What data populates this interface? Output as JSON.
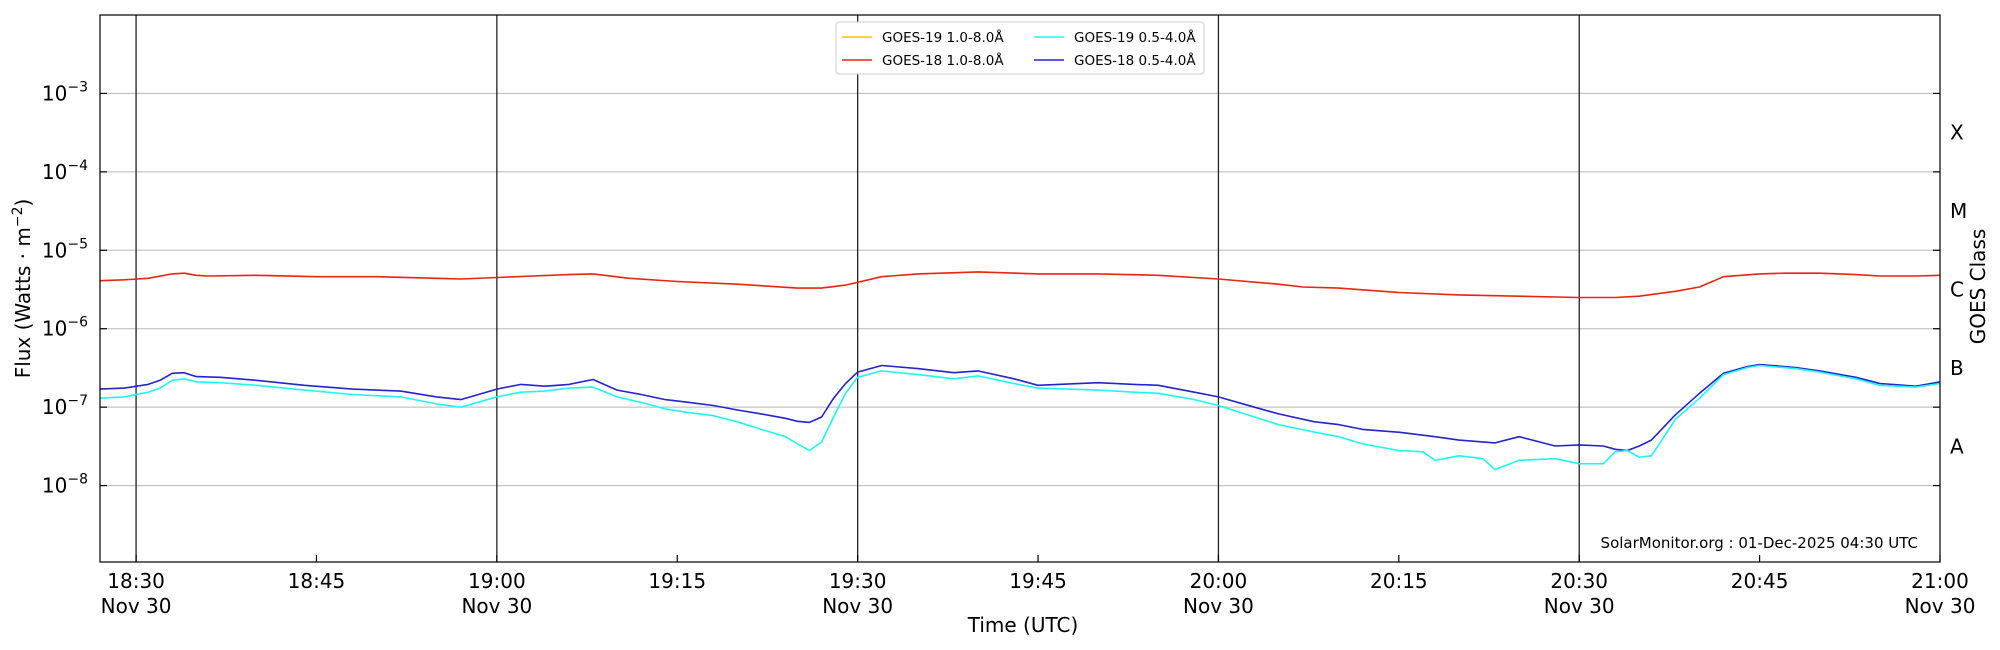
{
  "chart_data": {
    "type": "line",
    "xlabel": "Time (UTC)",
    "ylabel": "Flux (Watts · m",
    "ylabel_sup": "−2",
    "ylabel_suffix": ")",
    "right_label": "GOES Class",
    "x_range": [
      "18:27",
      "21:00"
    ],
    "y_log_range": [
      -8.9743,
      -2.0
    ],
    "y_scale": "log",
    "grid": "horizontal at decades",
    "legend_position": "top-center",
    "vertical_markers": [
      "18:30",
      "19:00",
      "19:30",
      "20:00",
      "20:30"
    ],
    "x_ticks": [
      {
        "t": "18:30",
        "label": "18:30",
        "date": "Nov 30"
      },
      {
        "t": "18:45",
        "label": "18:45",
        "date": ""
      },
      {
        "t": "19:00",
        "label": "19:00",
        "date": "Nov 30"
      },
      {
        "t": "19:15",
        "label": "19:15",
        "date": ""
      },
      {
        "t": "19:30",
        "label": "19:30",
        "date": "Nov 30"
      },
      {
        "t": "19:45",
        "label": "19:45",
        "date": ""
      },
      {
        "t": "20:00",
        "label": "20:00",
        "date": "Nov 30"
      },
      {
        "t": "20:15",
        "label": "20:15",
        "date": ""
      },
      {
        "t": "20:30",
        "label": "20:30",
        "date": "Nov 30"
      },
      {
        "t": "20:45",
        "label": "20:45",
        "date": ""
      },
      {
        "t": "21:00",
        "label": "21:00",
        "date": "Nov 30"
      }
    ],
    "y_ticks": [
      {
        "exp": -8,
        "base": "10",
        "sup": "−8"
      },
      {
        "exp": -7,
        "base": "10",
        "sup": "−7"
      },
      {
        "exp": -6,
        "base": "10",
        "sup": "−6"
      },
      {
        "exp": -5,
        "base": "10",
        "sup": "−5"
      },
      {
        "exp": -4,
        "base": "10",
        "sup": "−4"
      },
      {
        "exp": -3,
        "base": "10",
        "sup": "−3"
      }
    ],
    "goes_classes": [
      {
        "label": "A",
        "exp": -7.5
      },
      {
        "label": "B",
        "exp": -6.5
      },
      {
        "label": "C",
        "exp": -5.5
      },
      {
        "label": "M",
        "exp": -4.5
      },
      {
        "label": "X",
        "exp": -3.5
      }
    ],
    "watermark": "SolarMonitor.org : 01-Dec-2025 04:30 UTC",
    "series": [
      {
        "name": "GOES-19 1.0-8.0Å",
        "color": "#ffc000",
        "x": [],
        "y": []
      },
      {
        "name": "GOES-18 1.0-8.0Å",
        "color": "#e8250e",
        "x": [
          "18:27",
          "18:29",
          "18:31",
          "18:33",
          "18:34",
          "18:35",
          "18:36",
          "18:40",
          "18:45",
          "18:50",
          "18:55",
          "18:57",
          "19:00",
          "19:03",
          "19:06",
          "19:08",
          "19:11",
          "19:15",
          "19:20",
          "19:25",
          "19:27",
          "19:29",
          "19:32",
          "19:35",
          "19:40",
          "19:45",
          "19:50",
          "19:55",
          "20:00",
          "20:05",
          "20:07",
          "20:10",
          "20:15",
          "20:20",
          "20:25",
          "20:30",
          "20:33",
          "20:35",
          "20:38",
          "20:40",
          "20:42",
          "20:45",
          "20:47",
          "20:50",
          "20:53",
          "20:55",
          "20:58",
          "21:00"
        ],
        "y": [
          4.1e-06,
          4.2e-06,
          4.4e-06,
          5e-06,
          5.1e-06,
          4.8e-06,
          4.7e-06,
          4.8e-06,
          4.6e-06,
          4.6e-06,
          4.4e-06,
          4.3e-06,
          4.5e-06,
          4.7e-06,
          4.9e-06,
          5e-06,
          4.4e-06,
          4e-06,
          3.7e-06,
          3.3e-06,
          3.3e-06,
          3.6e-06,
          4.6e-06,
          5e-06,
          5.3e-06,
          5e-06,
          5e-06,
          4.8e-06,
          4.3e-06,
          3.7e-06,
          3.4e-06,
          3.3e-06,
          2.9e-06,
          2.7e-06,
          2.6e-06,
          2.5e-06,
          2.5e-06,
          2.6e-06,
          3e-06,
          3.4e-06,
          4.6e-06,
          5e-06,
          5.1e-06,
          5.1e-06,
          4.9e-06,
          4.7e-06,
          4.7e-06,
          4.8e-06
        ]
      },
      {
        "name": "GOES-19 0.5-4.0Å",
        "color": "#1ef5f5",
        "x": [
          "18:27",
          "18:29",
          "18:31",
          "18:32",
          "18:33",
          "18:34",
          "18:35",
          "18:37",
          "18:40",
          "18:44",
          "18:48",
          "18:52",
          "18:55",
          "18:57",
          "19:00",
          "19:02",
          "19:04",
          "19:06",
          "19:08",
          "19:10",
          "19:12",
          "19:14",
          "19:16",
          "19:18",
          "19:20",
          "19:22",
          "19:24",
          "19:25",
          "19:26",
          "19:27",
          "19:28",
          "19:29",
          "19:30",
          "19:32",
          "19:35",
          "19:38",
          "19:40",
          "19:43",
          "19:45",
          "19:50",
          "19:53",
          "19:55",
          "19:58",
          "20:00",
          "20:03",
          "20:05",
          "20:08",
          "20:10",
          "20:12",
          "20:15",
          "20:17",
          "20:18",
          "20:20",
          "20:22",
          "20:23",
          "20:25",
          "20:28",
          "20:30",
          "20:32",
          "20:33",
          "20:34",
          "20:35",
          "20:36",
          "20:38",
          "20:40",
          "20:42",
          "20:44",
          "20:45",
          "20:48",
          "20:50",
          "20:53",
          "20:55",
          "20:58",
          "21:00"
        ],
        "y": [
          1.3e-07,
          1.35e-07,
          1.55e-07,
          1.75e-07,
          2.2e-07,
          2.3e-07,
          2.1e-07,
          2.05e-07,
          1.9e-07,
          1.65e-07,
          1.45e-07,
          1.35e-07,
          1.1e-07,
          1e-07,
          1.35e-07,
          1.55e-07,
          1.6e-07,
          1.75e-07,
          1.8e-07,
          1.35e-07,
          1.15e-07,
          9.5e-08,
          8.5e-08,
          7.8e-08,
          6.5e-08,
          5.2e-08,
          4.2e-08,
          3.4e-08,
          2.8e-08,
          3.6e-08,
          7.5e-08,
          1.5e-07,
          2.4e-07,
          2.9e-07,
          2.6e-07,
          2.3e-07,
          2.5e-07,
          2e-07,
          1.75e-07,
          1.65e-07,
          1.55e-07,
          1.5e-07,
          1.25e-07,
          1.05e-07,
          7.5e-08,
          6e-08,
          4.8e-08,
          4.2e-08,
          3.4e-08,
          2.8e-08,
          2.7e-08,
          2.1e-08,
          2.4e-08,
          2.2e-08,
          1.6e-08,
          2.1e-08,
          2.2e-08,
          1.9e-08,
          1.9e-08,
          2.7e-08,
          2.8e-08,
          2.3e-08,
          2.4e-08,
          7e-08,
          1.3e-07,
          2.6e-07,
          3.2e-07,
          3.4e-07,
          3.1e-07,
          2.8e-07,
          2.3e-07,
          1.9e-07,
          1.8e-07,
          2e-07
        ]
      },
      {
        "name": "GOES-18 0.5-4.0Å",
        "color": "#2323cf",
        "x": [
          "18:27",
          "18:29",
          "18:31",
          "18:32",
          "18:33",
          "18:34",
          "18:35",
          "18:37",
          "18:40",
          "18:44",
          "18:48",
          "18:52",
          "18:55",
          "18:57",
          "19:00",
          "19:02",
          "19:04",
          "19:06",
          "19:08",
          "19:10",
          "19:12",
          "19:14",
          "19:16",
          "19:18",
          "19:20",
          "19:22",
          "19:24",
          "19:25",
          "19:26",
          "19:27",
          "19:28",
          "19:29",
          "19:30",
          "19:32",
          "19:35",
          "19:38",
          "19:40",
          "19:43",
          "19:45",
          "19:50",
          "19:53",
          "19:55",
          "19:58",
          "20:00",
          "20:03",
          "20:05",
          "20:08",
          "20:10",
          "20:12",
          "20:15",
          "20:18",
          "20:20",
          "20:23",
          "20:25",
          "20:28",
          "20:30",
          "20:32",
          "20:33",
          "20:34",
          "20:35",
          "20:36",
          "20:38",
          "20:40",
          "20:42",
          "20:44",
          "20:45",
          "20:48",
          "20:50",
          "20:53",
          "20:55",
          "20:58",
          "21:00"
        ],
        "y": [
          1.7e-07,
          1.75e-07,
          1.95e-07,
          2.2e-07,
          2.7e-07,
          2.75e-07,
          2.45e-07,
          2.4e-07,
          2.2e-07,
          1.9e-07,
          1.7e-07,
          1.6e-07,
          1.35e-07,
          1.25e-07,
          1.7e-07,
          1.95e-07,
          1.85e-07,
          1.95e-07,
          2.25e-07,
          1.65e-07,
          1.45e-07,
          1.25e-07,
          1.15e-07,
          1.05e-07,
          9.2e-08,
          8.2e-08,
          7.2e-08,
          6.6e-08,
          6.4e-08,
          7.5e-08,
          1.3e-07,
          2e-07,
          2.8e-07,
          3.4e-07,
          3.1e-07,
          2.75e-07,
          2.9e-07,
          2.3e-07,
          1.9e-07,
          2.05e-07,
          1.95e-07,
          1.9e-07,
          1.55e-07,
          1.35e-07,
          1e-07,
          8.2e-08,
          6.5e-08,
          6e-08,
          5.2e-08,
          4.8e-08,
          4.2e-08,
          3.8e-08,
          3.5e-08,
          4.2e-08,
          3.2e-08,
          3.3e-08,
          3.2e-08,
          2.9e-08,
          2.8e-08,
          3.2e-08,
          3.8e-08,
          8e-08,
          1.5e-07,
          2.7e-07,
          3.3e-07,
          3.5e-07,
          3.2e-07,
          2.9e-07,
          2.4e-07,
          2e-07,
          1.85e-07,
          2.1e-07
        ]
      }
    ]
  }
}
